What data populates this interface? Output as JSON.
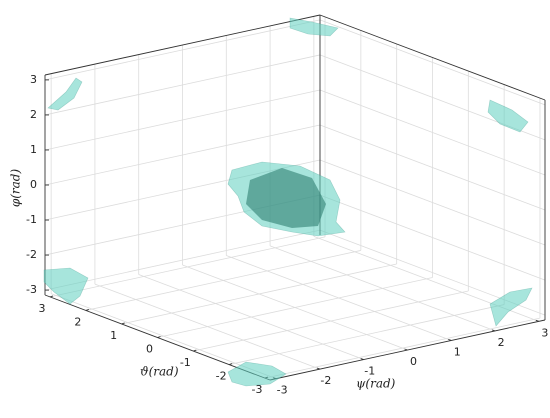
{
  "chart_data": {
    "type": "isosurface3d",
    "xlabel": "ψ(rad)",
    "ylabel": "ϑ(rad)",
    "zlabel": "φ(rad)",
    "xlim": [
      -3.14,
      3.14
    ],
    "ylim": [
      -3.14,
      3.14
    ],
    "zlim": [
      -3.14,
      3.14
    ],
    "xticks": [
      -3,
      -2,
      -1,
      0,
      1,
      2,
      3
    ],
    "yticks": [
      -3,
      -2,
      -1,
      0,
      1,
      2,
      3
    ],
    "zticks": [
      -3,
      -2,
      -1,
      0,
      1,
      2,
      3
    ],
    "grid": true,
    "color": "#5fd0c0"
  }
}
